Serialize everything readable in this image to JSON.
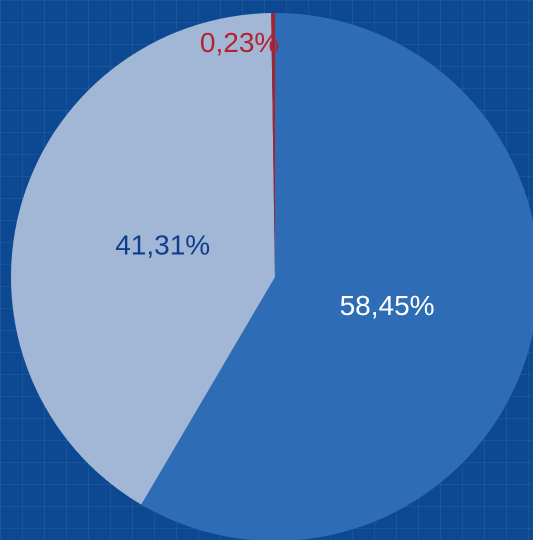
{
  "chart_data": {
    "type": "pie",
    "categories": [
      null,
      null,
      null
    ],
    "values": [
      58.45,
      41.31,
      0.23
    ],
    "value_labels": [
      "58,45%",
      "41,31%",
      "0,23%"
    ],
    "colors": [
      "#2e6db6",
      "#a2b7d5",
      "#a3232e"
    ],
    "label_colors": [
      "#ffffff",
      "#0f3f8c",
      "#b3232f"
    ],
    "start_angle": 0,
    "direction": "clockwise"
  }
}
